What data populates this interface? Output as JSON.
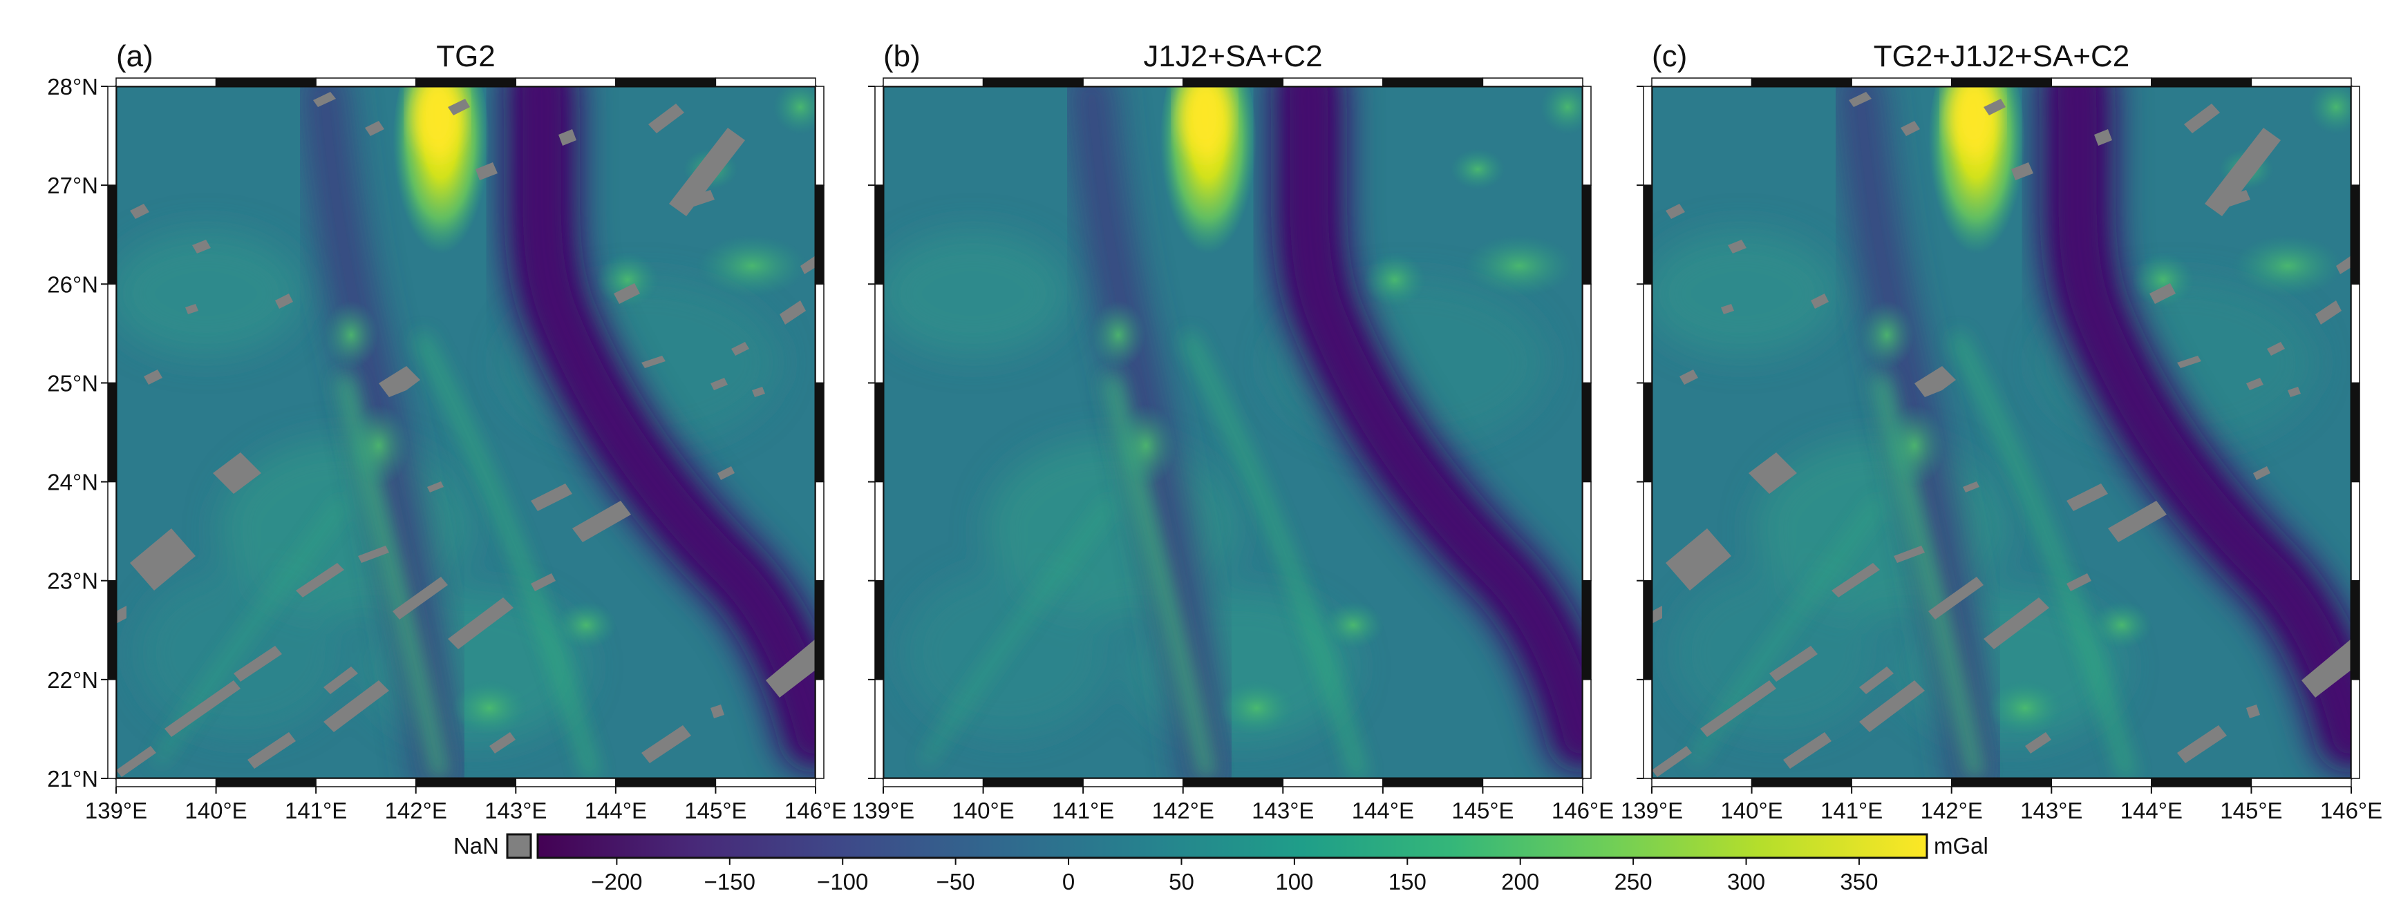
{
  "panels": [
    {
      "label": "(a)",
      "title": "TG2",
      "nan_gaps": true
    },
    {
      "label": "(b)",
      "title": "J1J2+SA+C2",
      "nan_gaps": false
    },
    {
      "label": "(c)",
      "title": "TG2+J1J2+SA+C2",
      "nan_gaps": true
    }
  ],
  "axes": {
    "lon_ticks": [
      "139°E",
      "140°E",
      "141°E",
      "142°E",
      "143°E",
      "144°E",
      "145°E",
      "146°E"
    ],
    "lat_ticks": [
      "28°N",
      "27°N",
      "26°N",
      "25°N",
      "24°N",
      "23°N",
      "22°N",
      "21°N"
    ],
    "lon_range": [
      139,
      146
    ],
    "lat_range": [
      21,
      28
    ]
  },
  "colorbar": {
    "nan_label": "NaN",
    "unit": "mGal",
    "tick_labels": [
      "−200",
      "−150",
      "−100",
      "−50",
      "0",
      "50",
      "100",
      "150",
      "200",
      "250",
      "300",
      "350"
    ],
    "ticks": [
      -200,
      -150,
      -100,
      -50,
      0,
      50,
      100,
      150,
      200,
      250,
      300,
      350
    ],
    "range": [
      -235,
      380
    ],
    "colormap": "viridis",
    "colors": [
      "#440154",
      "#482878",
      "#3e4989",
      "#31688e",
      "#26828e",
      "#1f9e89",
      "#35b779",
      "#6ece58",
      "#b5de2b",
      "#fde725"
    ],
    "nan_color": "#808080"
  }
}
